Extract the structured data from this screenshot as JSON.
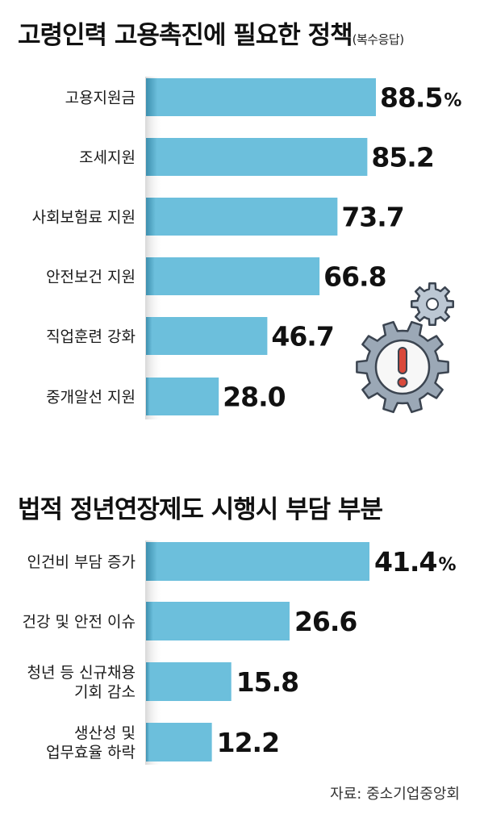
{
  "chart_data": [
    {
      "type": "bar",
      "orientation": "horizontal",
      "title": "고령인력 고용촉진에 필요한 정책",
      "subtitle": "(복수응답)",
      "categories": [
        "고용지원금",
        "조세지원",
        "사회보험료 지원",
        "안전보건 지원",
        "직업훈련 강화",
        "중개알선 지원"
      ],
      "values": [
        88.5,
        85.2,
        73.7,
        66.8,
        46.7,
        28.0
      ],
      "value_labels": [
        "88.5",
        "85.2",
        "73.7",
        "66.8",
        "46.7",
        "28.0"
      ],
      "unit": "%",
      "bar_color": "#6cbfdc"
    },
    {
      "type": "bar",
      "orientation": "horizontal",
      "title": "법적 정년연장제도 시행시 부담 부분",
      "categories": [
        [
          "인건비 부담 증가"
        ],
        [
          "건강 및 안전 이슈"
        ],
        [
          "청년 등 신규채용",
          "기회 감소"
        ],
        [
          "생산성 및",
          "업무효율 하락"
        ]
      ],
      "values": [
        41.4,
        26.6,
        15.8,
        12.2
      ],
      "value_labels": [
        "41.4",
        "26.6",
        "15.8",
        "12.2"
      ],
      "unit": "%",
      "bar_color": "#6cbfdc"
    }
  ],
  "source": "자료: 중소기업중앙회",
  "icons": [
    "gear-small-icon",
    "gear-warning-icon"
  ]
}
